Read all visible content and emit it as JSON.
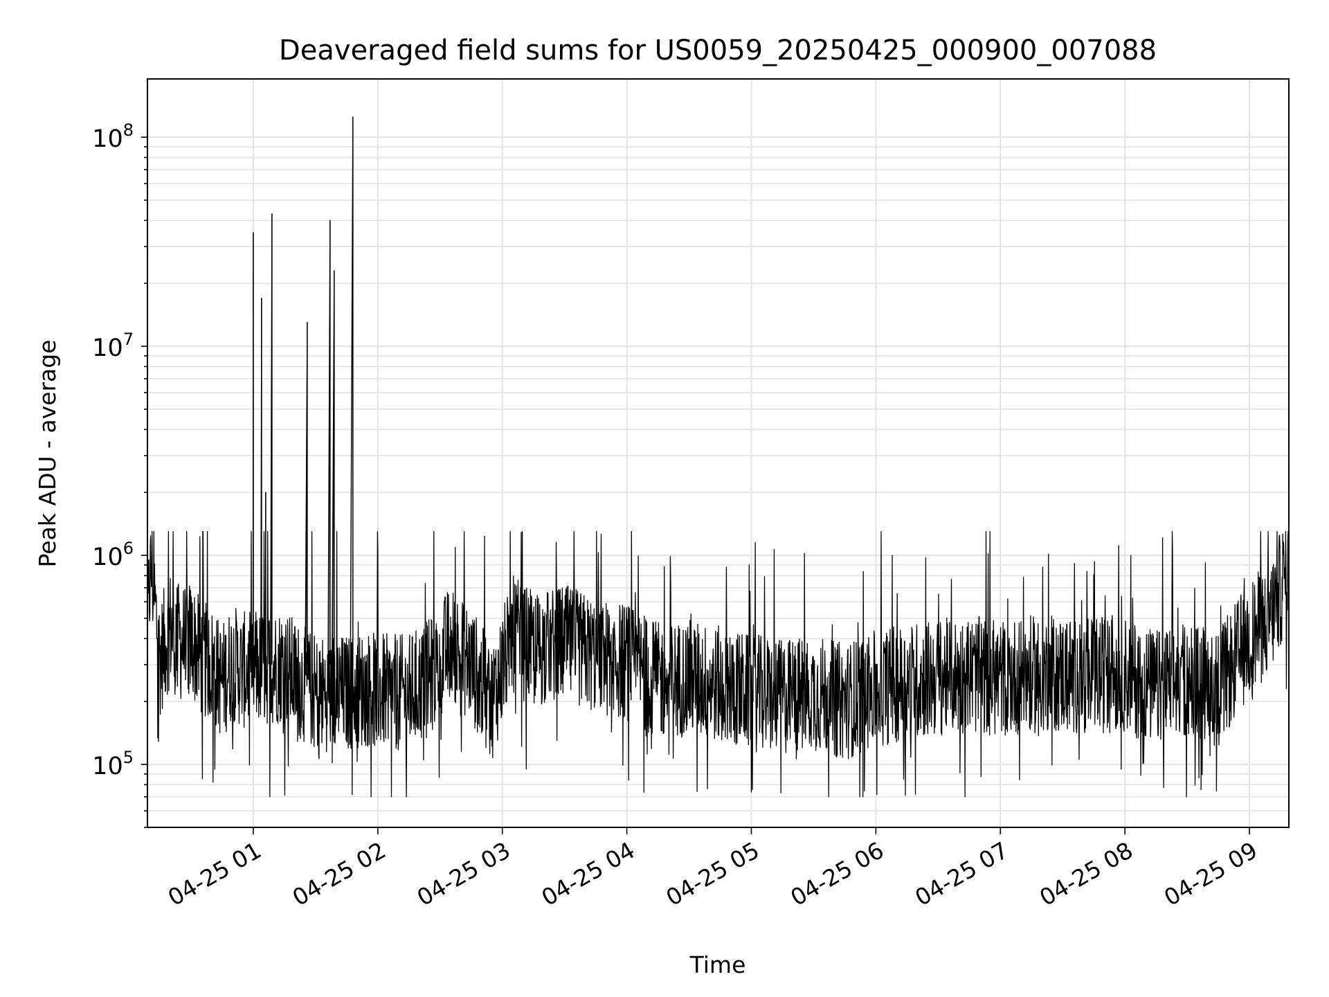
{
  "chart_data": {
    "type": "line",
    "title": "Deaveraged field sums for US0059_20250425_000900_007088",
    "xlabel": "Time",
    "ylabel": "Peak ADU - average",
    "yscale": "log",
    "xlim": [
      "2025-04-25 00:09",
      "2025-04-25 09:19"
    ],
    "ylim": [
      50000,
      190000000
    ],
    "grid": true,
    "line_color": "#000000",
    "x_ticks": [
      {
        "time": "2025-04-25 01:00",
        "label": "04-25 01"
      },
      {
        "time": "2025-04-25 02:00",
        "label": "04-25 02"
      },
      {
        "time": "2025-04-25 03:00",
        "label": "04-25 03"
      },
      {
        "time": "2025-04-25 04:00",
        "label": "04-25 04"
      },
      {
        "time": "2025-04-25 05:00",
        "label": "04-25 05"
      },
      {
        "time": "2025-04-25 06:00",
        "label": "04-25 06"
      },
      {
        "time": "2025-04-25 07:00",
        "label": "04-25 07"
      },
      {
        "time": "2025-04-25 08:00",
        "label": "04-25 08"
      },
      {
        "time": "2025-04-25 09:00",
        "label": "04-25 09"
      }
    ],
    "y_ticks": [
      {
        "value": 100000,
        "base": "10",
        "exp": "5"
      },
      {
        "value": 1000000,
        "base": "10",
        "exp": "6"
      },
      {
        "value": 10000000,
        "base": "10",
        "exp": "7"
      },
      {
        "value": 100000000,
        "base": "10",
        "exp": "8"
      }
    ],
    "series": [
      {
        "points": [
          [
            "2025-04-25 00:09",
            450000
          ],
          [
            "2025-04-25 00:10",
            720000
          ],
          [
            "2025-04-25 00:11",
            860000
          ],
          [
            "2025-04-25 00:15",
            320000
          ],
          [
            "2025-04-25 00:20",
            450000
          ],
          [
            "2025-04-25 00:25",
            380000
          ],
          [
            "2025-04-25 00:30",
            400000
          ],
          [
            "2025-04-25 00:35",
            320000
          ],
          [
            "2025-04-25 00:40",
            300000
          ],
          [
            "2025-04-25 00:45",
            250000
          ],
          [
            "2025-04-25 00:50",
            310000
          ],
          [
            "2025-04-25 00:55",
            280000
          ],
          [
            "2025-04-25 01:00",
            35000000
          ],
          [
            "2025-04-25 01:04",
            17000000
          ],
          [
            "2025-04-25 01:06",
            2000000
          ],
          [
            "2025-04-25 01:09",
            43000000
          ],
          [
            "2025-04-25 01:15",
            300000
          ],
          [
            "2025-04-25 01:20",
            260000
          ],
          [
            "2025-04-25 01:26",
            13000000
          ],
          [
            "2025-04-25 01:30",
            220000
          ],
          [
            "2025-04-25 01:37",
            40000000
          ],
          [
            "2025-04-25 01:39",
            23000000
          ],
          [
            "2025-04-25 01:45",
            220000
          ],
          [
            "2025-04-25 01:48",
            125000000
          ],
          [
            "2025-04-25 01:55",
            230000
          ],
          [
            "2025-04-25 02:05",
            220000
          ],
          [
            "2025-04-25 02:15",
            220000
          ],
          [
            "2025-04-25 02:25",
            260000
          ],
          [
            "2025-04-25 02:35",
            380000
          ],
          [
            "2025-04-25 02:45",
            300000
          ],
          [
            "2025-04-25 02:55",
            200000
          ],
          [
            "2025-04-25 03:05",
            420000
          ],
          [
            "2025-04-25 03:15",
            350000
          ],
          [
            "2025-04-25 03:30",
            380000
          ],
          [
            "2025-04-25 03:45",
            330000
          ],
          [
            "2025-04-25 04:00",
            310000
          ],
          [
            "2025-04-25 04:15",
            250000
          ],
          [
            "2025-04-25 04:30",
            260000
          ],
          [
            "2025-04-25 04:45",
            240000
          ],
          [
            "2025-04-25 05:00",
            220000
          ],
          [
            "2025-04-25 05:15",
            210000
          ],
          [
            "2025-04-25 05:30",
            220000
          ],
          [
            "2025-04-25 05:45",
            200000
          ],
          [
            "2025-04-25 06:00",
            230000
          ],
          [
            "2025-04-25 06:15",
            250000
          ],
          [
            "2025-04-25 06:30",
            260000
          ],
          [
            "2025-04-25 06:45",
            270000
          ],
          [
            "2025-04-25 07:00",
            260000
          ],
          [
            "2025-04-25 07:15",
            270000
          ],
          [
            "2025-04-25 07:30",
            270000
          ],
          [
            "2025-04-25 07:45",
            270000
          ],
          [
            "2025-04-25 08:00",
            270000
          ],
          [
            "2025-04-25 08:15",
            230000
          ],
          [
            "2025-04-25 08:30",
            260000
          ],
          [
            "2025-04-25 08:45",
            230000
          ],
          [
            "2025-04-25 09:00",
            400000
          ],
          [
            "2025-04-25 09:10",
            500000
          ],
          [
            "2025-04-25 09:19",
            900000
          ]
        ]
      }
    ]
  }
}
